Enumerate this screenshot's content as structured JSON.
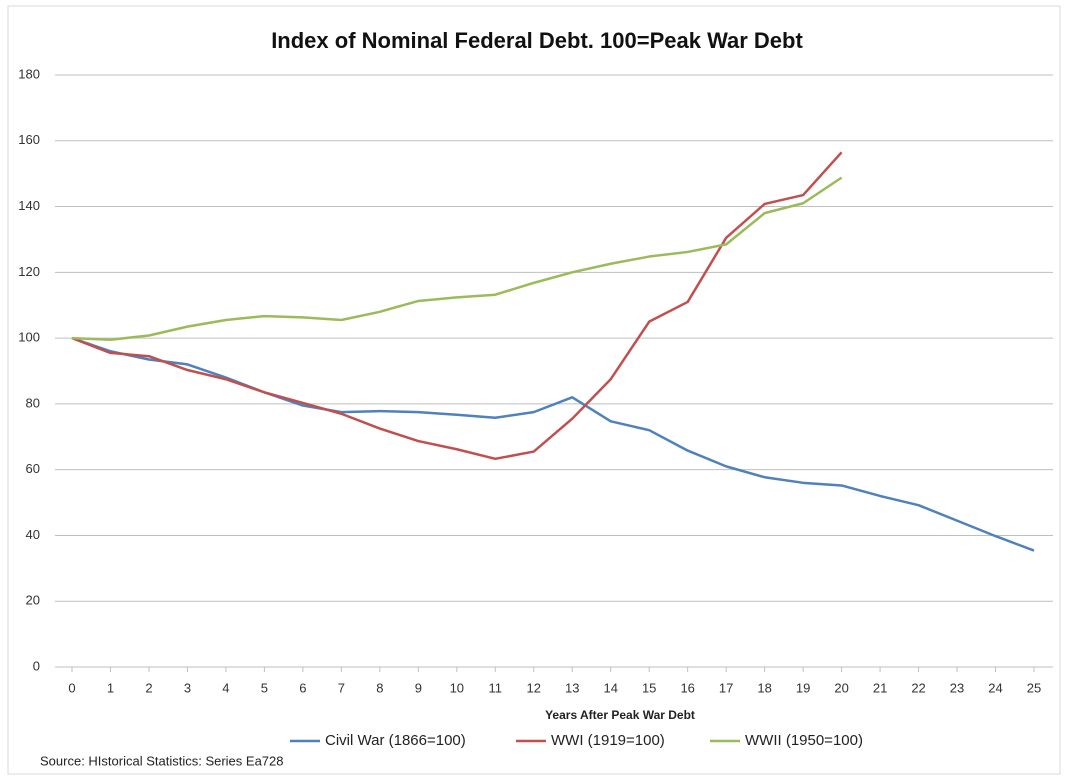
{
  "chart_data": {
    "type": "line",
    "title": "Index of Nominal Federal Debt.  100=Peak War Debt",
    "x_label": "Years After Peak War Debt",
    "source": "Source: HIstorical Statistics: Series Ea728",
    "x": [
      0,
      1,
      2,
      3,
      4,
      5,
      6,
      7,
      8,
      9,
      10,
      11,
      12,
      13,
      14,
      15,
      16,
      17,
      18,
      19,
      20,
      21,
      22,
      23,
      24,
      25
    ],
    "xlim": [
      0,
      25
    ],
    "xticks": [
      0,
      1,
      2,
      3,
      4,
      5,
      6,
      7,
      8,
      9,
      10,
      11,
      12,
      13,
      14,
      15,
      16,
      17,
      18,
      19,
      20,
      21,
      22,
      23,
      24,
      25
    ],
    "ylim": [
      0,
      180
    ],
    "yticks": [
      0,
      20,
      40,
      60,
      80,
      100,
      120,
      140,
      160,
      180
    ],
    "grid": true,
    "legend": "bottom",
    "series": [
      {
        "name": "Civil War (1866=100)",
        "color": "#4f81bd",
        "values": [
          100,
          96,
          93.5,
          92,
          88,
          83.5,
          79.5,
          77.5,
          77.8,
          77.5,
          76.7,
          75.8,
          77.5,
          82,
          74.7,
          72,
          65.8,
          61,
          57.7,
          56,
          55.2,
          52,
          49.2,
          44.5,
          39.8,
          35.4
        ]
      },
      {
        "name": "WWI (1919=100)",
        "color": "#c0504d",
        "values": [
          100,
          95.5,
          94.5,
          90.3,
          87.5,
          83.5,
          80.3,
          77,
          72.5,
          68.7,
          66.2,
          63.3,
          65.5,
          75.5,
          87.5,
          105,
          111,
          130.5,
          140.8,
          143.5,
          156.5,
          null,
          null,
          null,
          null,
          null
        ]
      },
      {
        "name": "WWII (1950=100)",
        "color": "#9bbb59",
        "values": [
          100,
          99.5,
          100.8,
          103.5,
          105.5,
          106.7,
          106.3,
          105.5,
          108,
          111.3,
          112.4,
          113.2,
          116.8,
          120,
          122.6,
          124.8,
          126.2,
          128.5,
          138,
          141,
          148.8,
          null,
          null,
          null,
          null,
          null
        ]
      }
    ]
  }
}
